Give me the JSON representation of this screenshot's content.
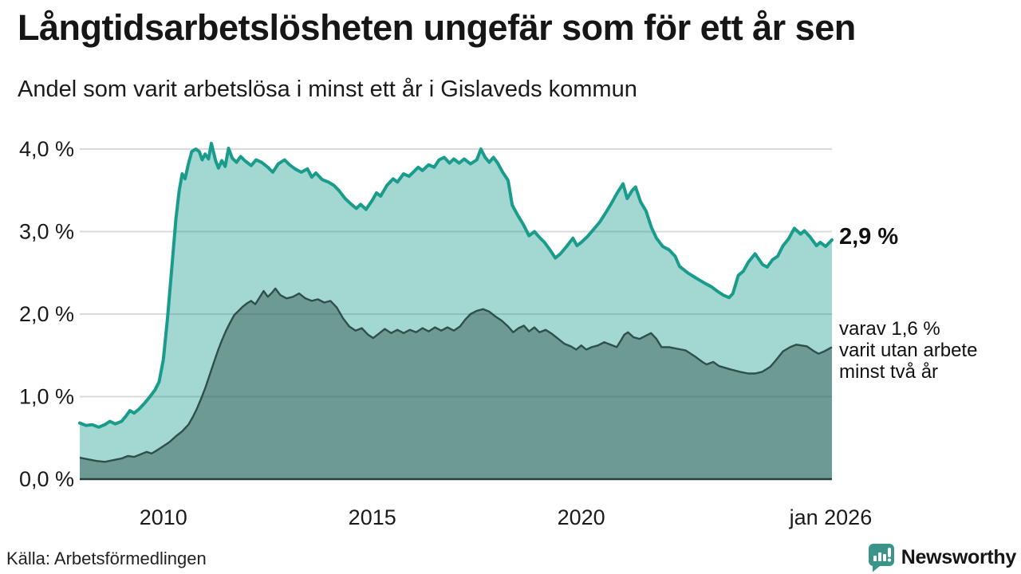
{
  "header": {
    "title": "Långtidsarbetslösheten ungefär som för ett år sen",
    "subtitle": "Andel som varit arbetslösa i minst ett år i Gislaveds kommun"
  },
  "annotations": {
    "latest_value": "2,9 %",
    "secondary_lines": [
      "varav 1,6 %",
      "varit utan arbete",
      "minst två år"
    ]
  },
  "footer": {
    "source": "Källa: Arbetsförmedlingen",
    "logo_text": "Newsworthy"
  },
  "colors": {
    "accent_teal": "#1a9c8c",
    "accent_teal_fill": "rgba(26,156,140,0.40)",
    "dark_teal": "#2e4f4a",
    "dark_teal_fill": "rgba(46,79,74,0.45)",
    "grid": "#d9d9d9",
    "baseline": "#24403c",
    "text": "#1a1a1a",
    "logo": "#2f857b"
  },
  "chart_data": {
    "type": "area",
    "title": "Långtidsarbetslösheten ungefär som för ett år sen",
    "subtitle": "Andel som varit arbetslösa i minst ett år i Gislaveds kommun",
    "xlabel": "",
    "ylabel": "",
    "grid": true,
    "legend_position": "none",
    "x_range": [
      2008.0,
      2026.0
    ],
    "ylim": [
      0,
      4.3
    ],
    "y_axis": {
      "ticks": [
        {
          "label": "0,0 %",
          "value": 0
        },
        {
          "label": "1,0 %",
          "value": 1
        },
        {
          "label": "2,0 %",
          "value": 2
        },
        {
          "label": "3,0 %",
          "value": 3
        },
        {
          "label": "4,0 %",
          "value": 4
        }
      ]
    },
    "x_axis": {
      "ticks": [
        {
          "label": "2010",
          "year": 2010.0
        },
        {
          "label": "2015",
          "year": 2015.0
        },
        {
          "label": "2020",
          "year": 2020.0
        },
        {
          "label": "jan 2026",
          "year": 2025.97
        }
      ]
    },
    "series": [
      {
        "name": "Andel arbetslösa minst ett år",
        "latest_label": "2,9 %",
        "latest_value": 2.9,
        "points": [
          [
            2008.0,
            0.68
          ],
          [
            2008.15,
            0.65
          ],
          [
            2008.3,
            0.66
          ],
          [
            2008.45,
            0.63
          ],
          [
            2008.6,
            0.66
          ],
          [
            2008.72,
            0.7
          ],
          [
            2008.85,
            0.67
          ],
          [
            2009.0,
            0.7
          ],
          [
            2009.1,
            0.76
          ],
          [
            2009.2,
            0.83
          ],
          [
            2009.3,
            0.8
          ],
          [
            2009.42,
            0.85
          ],
          [
            2009.55,
            0.92
          ],
          [
            2009.68,
            1.0
          ],
          [
            2009.8,
            1.08
          ],
          [
            2009.9,
            1.18
          ],
          [
            2010.0,
            1.45
          ],
          [
            2010.1,
            1.95
          ],
          [
            2010.2,
            2.55
          ],
          [
            2010.3,
            3.15
          ],
          [
            2010.38,
            3.5
          ],
          [
            2010.45,
            3.7
          ],
          [
            2010.52,
            3.64
          ],
          [
            2010.6,
            3.82
          ],
          [
            2010.68,
            3.97
          ],
          [
            2010.78,
            4.0
          ],
          [
            2010.86,
            3.97
          ],
          [
            2010.93,
            3.87
          ],
          [
            2011.0,
            3.94
          ],
          [
            2011.08,
            3.88
          ],
          [
            2011.15,
            4.07
          ],
          [
            2011.25,
            3.86
          ],
          [
            2011.32,
            3.77
          ],
          [
            2011.4,
            3.86
          ],
          [
            2011.48,
            3.79
          ],
          [
            2011.56,
            4.01
          ],
          [
            2011.65,
            3.89
          ],
          [
            2011.75,
            3.84
          ],
          [
            2011.85,
            3.91
          ],
          [
            2011.95,
            3.86
          ],
          [
            2012.1,
            3.8
          ],
          [
            2012.22,
            3.87
          ],
          [
            2012.35,
            3.84
          ],
          [
            2012.5,
            3.78
          ],
          [
            2012.62,
            3.72
          ],
          [
            2012.75,
            3.82
          ],
          [
            2012.9,
            3.87
          ],
          [
            2013.02,
            3.81
          ],
          [
            2013.15,
            3.76
          ],
          [
            2013.3,
            3.72
          ],
          [
            2013.45,
            3.76
          ],
          [
            2013.55,
            3.66
          ],
          [
            2013.65,
            3.71
          ],
          [
            2013.8,
            3.63
          ],
          [
            2013.95,
            3.6
          ],
          [
            2014.08,
            3.56
          ],
          [
            2014.2,
            3.5
          ],
          [
            2014.35,
            3.4
          ],
          [
            2014.5,
            3.33
          ],
          [
            2014.62,
            3.28
          ],
          [
            2014.72,
            3.33
          ],
          [
            2014.85,
            3.27
          ],
          [
            2015.0,
            3.38
          ],
          [
            2015.1,
            3.47
          ],
          [
            2015.2,
            3.43
          ],
          [
            2015.35,
            3.56
          ],
          [
            2015.5,
            3.64
          ],
          [
            2015.6,
            3.6
          ],
          [
            2015.75,
            3.7
          ],
          [
            2015.88,
            3.67
          ],
          [
            2016.0,
            3.73
          ],
          [
            2016.1,
            3.78
          ],
          [
            2016.2,
            3.74
          ],
          [
            2016.35,
            3.81
          ],
          [
            2016.48,
            3.78
          ],
          [
            2016.6,
            3.87
          ],
          [
            2016.72,
            3.9
          ],
          [
            2016.85,
            3.83
          ],
          [
            2016.95,
            3.88
          ],
          [
            2017.08,
            3.83
          ],
          [
            2017.2,
            3.88
          ],
          [
            2017.35,
            3.82
          ],
          [
            2017.5,
            3.87
          ],
          [
            2017.6,
            4.0
          ],
          [
            2017.7,
            3.9
          ],
          [
            2017.8,
            3.84
          ],
          [
            2017.9,
            3.9
          ],
          [
            2018.0,
            3.83
          ],
          [
            2018.12,
            3.72
          ],
          [
            2018.25,
            3.62
          ],
          [
            2018.35,
            3.32
          ],
          [
            2018.48,
            3.2
          ],
          [
            2018.62,
            3.08
          ],
          [
            2018.75,
            2.95
          ],
          [
            2018.88,
            3.0
          ],
          [
            2019.0,
            2.93
          ],
          [
            2019.12,
            2.87
          ],
          [
            2019.25,
            2.78
          ],
          [
            2019.38,
            2.68
          ],
          [
            2019.5,
            2.73
          ],
          [
            2019.65,
            2.82
          ],
          [
            2019.8,
            2.92
          ],
          [
            2019.9,
            2.83
          ],
          [
            2020.0,
            2.87
          ],
          [
            2020.15,
            2.94
          ],
          [
            2020.3,
            3.03
          ],
          [
            2020.45,
            3.12
          ],
          [
            2020.6,
            3.24
          ],
          [
            2020.72,
            3.34
          ],
          [
            2020.85,
            3.46
          ],
          [
            2021.0,
            3.58
          ],
          [
            2021.1,
            3.4
          ],
          [
            2021.22,
            3.5
          ],
          [
            2021.3,
            3.54
          ],
          [
            2021.42,
            3.36
          ],
          [
            2021.55,
            3.25
          ],
          [
            2021.68,
            3.05
          ],
          [
            2021.8,
            2.92
          ],
          [
            2021.95,
            2.82
          ],
          [
            2022.1,
            2.78
          ],
          [
            2022.25,
            2.7
          ],
          [
            2022.35,
            2.58
          ],
          [
            2022.55,
            2.5
          ],
          [
            2022.74,
            2.44
          ],
          [
            2022.97,
            2.37
          ],
          [
            2023.12,
            2.33
          ],
          [
            2023.25,
            2.28
          ],
          [
            2023.4,
            2.23
          ],
          [
            2023.54,
            2.2
          ],
          [
            2023.63,
            2.25
          ],
          [
            2023.76,
            2.47
          ],
          [
            2023.88,
            2.52
          ],
          [
            2024.0,
            2.63
          ],
          [
            2024.16,
            2.73
          ],
          [
            2024.34,
            2.6
          ],
          [
            2024.45,
            2.57
          ],
          [
            2024.58,
            2.66
          ],
          [
            2024.7,
            2.7
          ],
          [
            2024.83,
            2.83
          ],
          [
            2024.96,
            2.91
          ],
          [
            2025.1,
            3.04
          ],
          [
            2025.25,
            2.97
          ],
          [
            2025.34,
            3.01
          ],
          [
            2025.47,
            2.94
          ],
          [
            2025.63,
            2.83
          ],
          [
            2025.72,
            2.87
          ],
          [
            2025.85,
            2.82
          ],
          [
            2026.0,
            2.9
          ]
        ]
      },
      {
        "name": "Andel arbetslösa minst två år",
        "latest_label": "varav 1,6 % varit utan arbete minst två år",
        "latest_value": 1.6,
        "points": [
          [
            2008.0,
            0.26
          ],
          [
            2008.2,
            0.24
          ],
          [
            2008.4,
            0.22
          ],
          [
            2008.6,
            0.21
          ],
          [
            2008.8,
            0.23
          ],
          [
            2009.0,
            0.25
          ],
          [
            2009.15,
            0.28
          ],
          [
            2009.3,
            0.27
          ],
          [
            2009.45,
            0.3
          ],
          [
            2009.6,
            0.33
          ],
          [
            2009.72,
            0.31
          ],
          [
            2009.85,
            0.35
          ],
          [
            2010.0,
            0.4
          ],
          [
            2010.15,
            0.45
          ],
          [
            2010.3,
            0.52
          ],
          [
            2010.45,
            0.58
          ],
          [
            2010.6,
            0.66
          ],
          [
            2010.7,
            0.75
          ],
          [
            2010.8,
            0.85
          ],
          [
            2010.9,
            0.97
          ],
          [
            2011.0,
            1.1
          ],
          [
            2011.1,
            1.25
          ],
          [
            2011.2,
            1.4
          ],
          [
            2011.3,
            1.55
          ],
          [
            2011.4,
            1.68
          ],
          [
            2011.5,
            1.8
          ],
          [
            2011.6,
            1.9
          ],
          [
            2011.7,
            1.99
          ],
          [
            2011.8,
            2.04
          ],
          [
            2011.9,
            2.09
          ],
          [
            2012.0,
            2.13
          ],
          [
            2012.1,
            2.16
          ],
          [
            2012.2,
            2.12
          ],
          [
            2012.3,
            2.2
          ],
          [
            2012.4,
            2.28
          ],
          [
            2012.5,
            2.21
          ],
          [
            2012.6,
            2.26
          ],
          [
            2012.68,
            2.31
          ],
          [
            2012.8,
            2.23
          ],
          [
            2012.95,
            2.19
          ],
          [
            2013.1,
            2.21
          ],
          [
            2013.25,
            2.25
          ],
          [
            2013.4,
            2.19
          ],
          [
            2013.55,
            2.16
          ],
          [
            2013.7,
            2.18
          ],
          [
            2013.85,
            2.14
          ],
          [
            2014.0,
            2.16
          ],
          [
            2014.15,
            2.08
          ],
          [
            2014.3,
            1.95
          ],
          [
            2014.45,
            1.85
          ],
          [
            2014.6,
            1.8
          ],
          [
            2014.75,
            1.83
          ],
          [
            2014.9,
            1.75
          ],
          [
            2015.02,
            1.71
          ],
          [
            2015.15,
            1.76
          ],
          [
            2015.3,
            1.82
          ],
          [
            2015.45,
            1.77
          ],
          [
            2015.6,
            1.81
          ],
          [
            2015.75,
            1.77
          ],
          [
            2015.9,
            1.81
          ],
          [
            2016.05,
            1.78
          ],
          [
            2016.2,
            1.83
          ],
          [
            2016.35,
            1.79
          ],
          [
            2016.5,
            1.84
          ],
          [
            2016.65,
            1.8
          ],
          [
            2016.8,
            1.84
          ],
          [
            2016.95,
            1.8
          ],
          [
            2017.1,
            1.85
          ],
          [
            2017.22,
            1.93
          ],
          [
            2017.35,
            2.0
          ],
          [
            2017.5,
            2.04
          ],
          [
            2017.65,
            2.06
          ],
          [
            2017.8,
            2.03
          ],
          [
            2017.95,
            1.97
          ],
          [
            2018.1,
            1.92
          ],
          [
            2018.25,
            1.85
          ],
          [
            2018.37,
            1.78
          ],
          [
            2018.5,
            1.83
          ],
          [
            2018.63,
            1.86
          ],
          [
            2018.75,
            1.79
          ],
          [
            2018.88,
            1.84
          ],
          [
            2019.0,
            1.78
          ],
          [
            2019.15,
            1.81
          ],
          [
            2019.3,
            1.76
          ],
          [
            2019.45,
            1.7
          ],
          [
            2019.6,
            1.64
          ],
          [
            2019.75,
            1.61
          ],
          [
            2019.88,
            1.57
          ],
          [
            2020.0,
            1.62
          ],
          [
            2020.12,
            1.57
          ],
          [
            2020.25,
            1.6
          ],
          [
            2020.4,
            1.62
          ],
          [
            2020.55,
            1.66
          ],
          [
            2020.7,
            1.63
          ],
          [
            2020.85,
            1.6
          ],
          [
            2020.95,
            1.68
          ],
          [
            2021.03,
            1.75
          ],
          [
            2021.12,
            1.78
          ],
          [
            2021.25,
            1.72
          ],
          [
            2021.4,
            1.7
          ],
          [
            2021.55,
            1.74
          ],
          [
            2021.67,
            1.77
          ],
          [
            2021.8,
            1.7
          ],
          [
            2021.92,
            1.6
          ],
          [
            2022.1,
            1.6
          ],
          [
            2022.3,
            1.58
          ],
          [
            2022.5,
            1.56
          ],
          [
            2022.74,
            1.48
          ],
          [
            2022.9,
            1.42
          ],
          [
            2023.0,
            1.39
          ],
          [
            2023.16,
            1.42
          ],
          [
            2023.3,
            1.37
          ],
          [
            2023.57,
            1.33
          ],
          [
            2023.8,
            1.3
          ],
          [
            2024.0,
            1.28
          ],
          [
            2024.16,
            1.28
          ],
          [
            2024.33,
            1.3
          ],
          [
            2024.52,
            1.36
          ],
          [
            2024.64,
            1.43
          ],
          [
            2024.83,
            1.55
          ],
          [
            2025.0,
            1.6
          ],
          [
            2025.15,
            1.63
          ],
          [
            2025.4,
            1.61
          ],
          [
            2025.57,
            1.55
          ],
          [
            2025.68,
            1.52
          ],
          [
            2025.82,
            1.55
          ],
          [
            2026.0,
            1.6
          ]
        ]
      }
    ]
  }
}
